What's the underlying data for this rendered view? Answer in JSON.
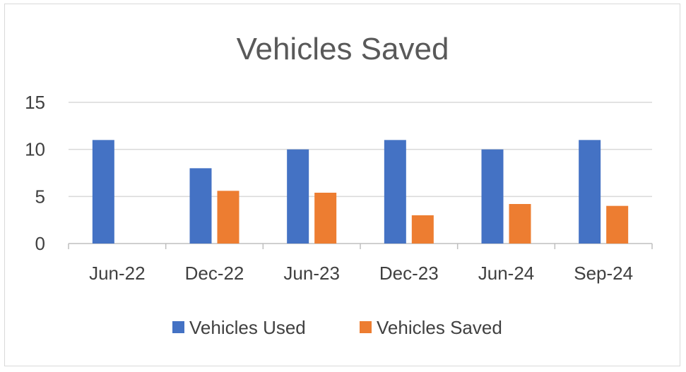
{
  "chart_data": {
    "type": "bar",
    "title": "Vehicles Saved",
    "xlabel": "",
    "ylabel": "",
    "categories": [
      "Jun-22",
      "Dec-22",
      "Jun-23",
      "Dec-23",
      "Jun-24",
      "Sep-24"
    ],
    "series": [
      {
        "name": "Vehicles Used",
        "color": "#4472c4",
        "values": [
          11,
          8,
          10,
          11,
          10,
          11
        ]
      },
      {
        "name": "Vehicles Saved",
        "color": "#ed7d31",
        "values": [
          0,
          5.6,
          5.4,
          3,
          4.2,
          4
        ]
      }
    ],
    "ylim": [
      0,
      15
    ],
    "yticks": [
      0,
      5,
      10,
      15
    ],
    "grid": true,
    "legend_position": "bottom"
  }
}
